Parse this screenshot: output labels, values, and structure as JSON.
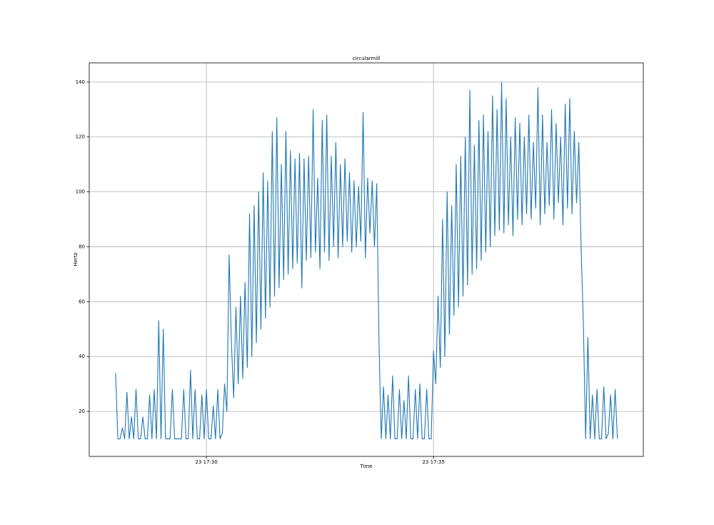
{
  "chart_data": {
    "type": "line",
    "title": "circularmill",
    "xlabel": "Time",
    "ylabel": "Hertz",
    "color": "#1f77b4",
    "grid": true,
    "xlim": [
      1047.42,
      1059.62
    ],
    "ylim": [
      3.6,
      147
    ],
    "xticks": [
      {
        "value": 1050,
        "label": "23 17:30"
      },
      {
        "value": 1055,
        "label": "23 17:35"
      }
    ],
    "yticks": [
      20,
      40,
      60,
      80,
      100,
      120,
      140
    ],
    "x": [
      1048,
      1048.05,
      1048.1,
      1048.15,
      1048.2,
      1048.25,
      1048.3,
      1048.35,
      1048.4,
      1048.45,
      1048.5,
      1048.55,
      1048.6,
      1048.65,
      1048.7,
      1048.75,
      1048.8,
      1048.85,
      1048.9,
      1048.95,
      1049,
      1049.05,
      1049.1,
      1049.15,
      1049.2,
      1049.25,
      1049.3,
      1049.35,
      1049.4,
      1049.45,
      1049.5,
      1049.55,
      1049.6,
      1049.65,
      1049.7,
      1049.75,
      1049.8,
      1049.85,
      1049.9,
      1049.95,
      1050,
      1050.05,
      1050.1,
      1050.15,
      1050.2,
      1050.25,
      1050.3,
      1050.35,
      1050.4,
      1050.45,
      1050.5,
      1050.55,
      1050.6,
      1050.65,
      1050.7,
      1050.75,
      1050.8,
      1050.85,
      1050.9,
      1050.95,
      1051,
      1051.05,
      1051.1,
      1051.15,
      1051.2,
      1051.25,
      1051.3,
      1051.35,
      1051.4,
      1051.45,
      1051.5,
      1051.55,
      1051.6,
      1051.65,
      1051.7,
      1051.75,
      1051.8,
      1051.85,
      1051.9,
      1051.95,
      1052,
      1052.05,
      1052.1,
      1052.15,
      1052.2,
      1052.25,
      1052.3,
      1052.35,
      1052.4,
      1052.45,
      1052.5,
      1052.55,
      1052.6,
      1052.65,
      1052.7,
      1052.75,
      1052.8,
      1052.85,
      1052.9,
      1052.95,
      1053,
      1053.05,
      1053.1,
      1053.15,
      1053.2,
      1053.25,
      1053.3,
      1053.35,
      1053.4,
      1053.45,
      1053.5,
      1053.55,
      1053.6,
      1053.65,
      1053.7,
      1053.75,
      1053.8,
      1053.85,
      1053.9,
      1053.95,
      1054,
      1054.05,
      1054.1,
      1054.15,
      1054.2,
      1054.25,
      1054.3,
      1054.35,
      1054.4,
      1054.45,
      1054.5,
      1054.55,
      1054.6,
      1054.65,
      1054.7,
      1054.75,
      1054.8,
      1054.85,
      1054.9,
      1054.95,
      1055,
      1055.05,
      1055.1,
      1055.15,
      1055.2,
      1055.25,
      1055.3,
      1055.35,
      1055.4,
      1055.45,
      1055.5,
      1055.55,
      1055.6,
      1055.65,
      1055.7,
      1055.75,
      1055.8,
      1055.85,
      1055.9,
      1055.95,
      1056,
      1056.05,
      1056.1,
      1056.15,
      1056.2,
      1056.25,
      1056.3,
      1056.35,
      1056.4,
      1056.45,
      1056.5,
      1056.55,
      1056.6,
      1056.65,
      1056.7,
      1056.75,
      1056.8,
      1056.85,
      1056.9,
      1056.95,
      1057,
      1057.05,
      1057.1,
      1057.15,
      1057.2,
      1057.25,
      1057.3,
      1057.35,
      1057.4,
      1057.45,
      1057.5,
      1057.55,
      1057.6,
      1057.65,
      1057.7,
      1057.75,
      1057.8,
      1057.85,
      1057.9,
      1057.95,
      1058,
      1058.05,
      1058.1,
      1058.15,
      1058.2,
      1058.25,
      1058.3,
      1058.35,
      1058.4,
      1058.45,
      1058.5,
      1058.55,
      1058.6,
      1058.65,
      1058.7,
      1058.75,
      1058.8,
      1058.85,
      1058.9,
      1058.95,
      1059,
      1059.05
    ],
    "values": [
      34,
      10,
      10,
      14,
      10,
      27,
      10,
      18,
      10,
      28,
      10,
      10,
      18,
      10,
      10,
      26,
      10,
      28,
      10,
      53,
      10,
      50,
      10,
      10,
      10,
      28,
      10,
      10,
      10,
      10,
      28,
      10,
      10,
      35,
      10,
      28,
      10,
      10,
      26,
      10,
      28,
      10,
      10,
      22,
      10,
      28,
      10,
      12,
      30,
      20,
      77,
      45,
      25,
      58,
      30,
      62,
      32,
      67,
      36,
      92,
      40,
      95,
      45,
      100,
      50,
      107,
      54,
      104,
      58,
      122,
      62,
      127,
      65,
      110,
      68,
      122,
      70,
      115,
      72,
      112,
      74,
      114,
      65,
      112,
      75,
      113,
      76,
      130,
      78,
      105,
      72,
      126,
      78,
      128,
      75,
      113,
      80,
      118,
      76,
      110,
      80,
      112,
      82,
      107,
      78,
      104,
      80,
      102,
      82,
      129,
      76,
      105,
      85,
      104,
      80,
      103,
      45,
      10,
      29,
      10,
      26,
      10,
      33,
      10,
      10,
      28,
      10,
      24,
      10,
      33,
      10,
      10,
      28,
      10,
      30,
      10,
      10,
      28,
      10,
      10,
      42,
      30,
      62,
      36,
      90,
      40,
      100,
      48,
      95,
      55,
      110,
      58,
      113,
      62,
      120,
      66,
      137,
      70,
      117,
      72,
      126,
      75,
      128,
      78,
      122,
      80,
      135,
      84,
      130,
      86,
      140,
      85,
      134,
      88,
      120,
      84,
      127,
      90,
      125,
      88,
      120,
      92,
      128,
      90,
      118,
      94,
      138,
      88,
      128,
      92,
      118,
      95,
      130,
      90,
      125,
      96,
      120,
      88,
      132,
      94,
      134,
      92,
      122,
      96,
      118,
      80,
      52,
      10,
      47,
      10,
      26,
      10,
      28,
      10,
      10,
      29,
      10,
      12,
      26,
      10,
      28,
      10
    ]
  }
}
